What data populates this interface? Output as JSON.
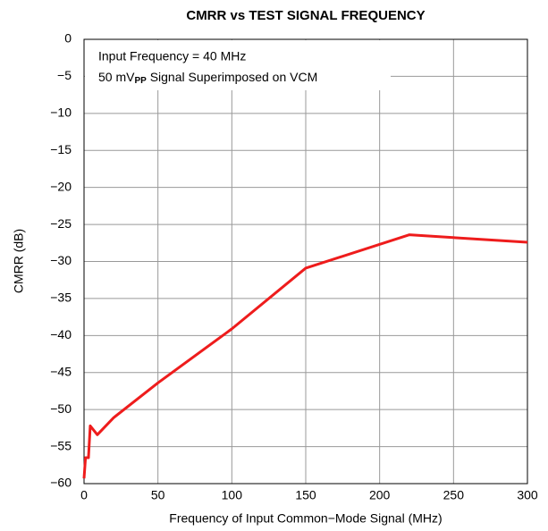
{
  "chart_data": {
    "type": "line",
    "title": "CMRR vs TEST SIGNAL FREQUENCY",
    "x_label": "Frequency of Input Common−Mode Signal  (MHz)",
    "y_label": "CMRR (dB)",
    "annotations": [
      {
        "text": "Input Frequency = 40 MHz"
      },
      {
        "text": "50 mV",
        "subscript": "PP",
        "text_after": " Signal Superimposed on VCM"
      }
    ],
    "x": [
      0,
      1,
      3,
      4.2,
      9,
      20,
      50,
      100,
      150,
      220,
      300
    ],
    "series": [
      {
        "name": "CMRR",
        "color": "#ee1c1c",
        "values": [
          -59.3,
          -56.5,
          -56.5,
          -52.2,
          -53.4,
          -51.1,
          -46.4,
          -39.1,
          -30.9,
          -26.4,
          -27.4
        ]
      }
    ],
    "xlim": [
      0,
      300
    ],
    "xticks": [
      0,
      50,
      100,
      150,
      200,
      250,
      300
    ],
    "ylim": [
      -60,
      0
    ],
    "yticks": [
      {
        "value": -60,
        "label": "−60"
      },
      {
        "value": -55,
        "label": "−55"
      },
      {
        "value": -50,
        "label": "−50"
      },
      {
        "value": -45,
        "label": "−45"
      },
      {
        "value": -40,
        "label": "−40"
      },
      {
        "value": -35,
        "label": "−35"
      },
      {
        "value": -30,
        "label": "−30"
      },
      {
        "value": -25,
        "label": "−25"
      },
      {
        "value": -20,
        "label": "−20"
      },
      {
        "value": -15,
        "label": "−15"
      },
      {
        "value": -10,
        "label": "−10"
      },
      {
        "value": -5,
        "label": "−5"
      },
      0
    ],
    "grid": true
  }
}
